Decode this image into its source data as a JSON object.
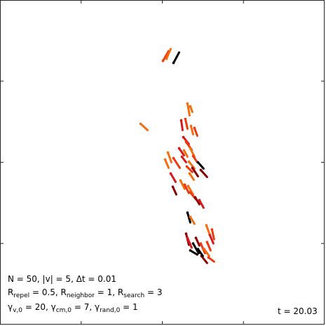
{
  "params": {
    "line1": "N = 50, |v| = 5, Δt = 0.01",
    "repel_label": "R",
    "repel_sub": "repel",
    "repel_value": " = 0.5, ",
    "neighbor_label": "R",
    "neighbor_sub": "neighbor",
    "neighbor_value": " = 1, ",
    "search_label": "R",
    "search_sub": "search",
    "search_value": " = 3",
    "gv_label": "γ",
    "gv_sub": "v,0",
    "gv_value": " = 20, ",
    "gcm_label": "γ",
    "gcm_sub": "cm,0",
    "gcm_value": " = 7, ",
    "grand_label": "γ",
    "grand_sub": "rand,0",
    "grand_value": " = 1"
  },
  "time": {
    "text": "t = 20.03"
  },
  "colors": {
    "black": "#000000",
    "dark_red": "#8b0000",
    "red": "#d7191c",
    "red_orange": "#ee3a10",
    "orange": "#f46d0f"
  }
}
